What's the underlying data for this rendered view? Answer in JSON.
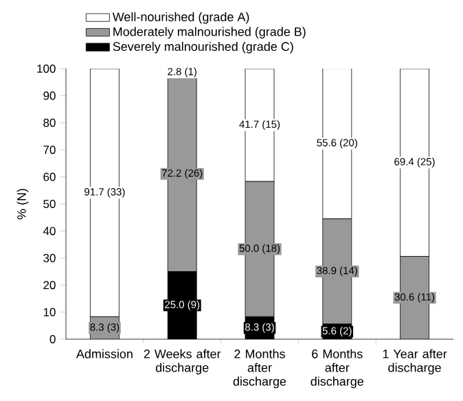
{
  "chart_data": {
    "type": "bar",
    "stacked": true,
    "ylabel": "% (N)",
    "categories": [
      "Admission",
      "2 Weeks after discharge",
      "2 Months after discharge",
      "6 Months after discharge",
      "1 Year after discharge"
    ],
    "series": [
      {
        "name": "Severely malnourished (grade C)",
        "color": "#000000",
        "values": [
          0,
          25.0,
          8.3,
          5.6,
          0
        ],
        "value_labels": [
          null,
          "25.0 (9)",
          "8.3 (3)",
          "5.6 (2)",
          null
        ]
      },
      {
        "name": "Moderately malnourished (grade B)",
        "color": "#999999",
        "values": [
          8.3,
          72.2,
          50.0,
          38.9,
          30.6
        ],
        "value_labels": [
          "8.3 (3)",
          "72.2 (26)",
          "50.0 (18)",
          "38.9 (14)",
          "30.6 (11)"
        ]
      },
      {
        "name": "Well-nourished (grade A)",
        "color": "#ffffff",
        "values": [
          91.7,
          2.8,
          41.7,
          55.6,
          69.4
        ],
        "value_labels": [
          "91.7 (33)",
          "2.8 (1)",
          "41.7 (15)",
          "55.6 (20)",
          "69.4 (25)"
        ]
      }
    ],
    "ylim": [
      0,
      100
    ],
    "yticks": [
      0,
      10,
      20,
      30,
      40,
      50,
      60,
      70,
      80,
      90,
      100
    ],
    "legend": "top"
  }
}
